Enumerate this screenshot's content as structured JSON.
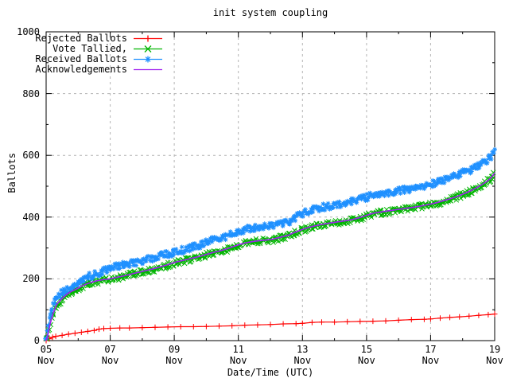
{
  "chart_data": {
    "type": "line",
    "title": "init system coupling",
    "xlabel": "Date/Time (UTC)",
    "ylabel": "Ballots",
    "ylim": [
      0,
      1000
    ],
    "xlim_days": [
      0,
      14
    ],
    "grid": true,
    "legend_position": "top-left",
    "y_ticks": [
      0,
      200,
      400,
      600,
      800,
      1000
    ],
    "y_minor_ticks": [
      100,
      300,
      500,
      700,
      900
    ],
    "x_tick_month": "Nov",
    "x_ticks": [
      {
        "day": 0,
        "label": "05"
      },
      {
        "day": 2,
        "label": "07"
      },
      {
        "day": 4,
        "label": "09"
      },
      {
        "day": 6,
        "label": "11"
      },
      {
        "day": 8,
        "label": "13"
      },
      {
        "day": 10,
        "label": "15"
      },
      {
        "day": 12,
        "label": "17"
      },
      {
        "day": 14,
        "label": "19"
      }
    ],
    "x_minor_days": [
      1,
      3,
      5,
      7,
      9,
      11,
      13
    ],
    "series": [
      {
        "name": "Rejected Ballots",
        "color": "#ff0000",
        "marker": "plus",
        "style": "linespoints",
        "points": [
          [
            0,
            0
          ],
          [
            0.1,
            6
          ],
          [
            0.2,
            11
          ],
          [
            0.3,
            14
          ],
          [
            0.5,
            17
          ],
          [
            0.7,
            21
          ],
          [
            0.9,
            24
          ],
          [
            1.1,
            27
          ],
          [
            1.3,
            30
          ],
          [
            1.5,
            33
          ],
          [
            1.65,
            37
          ],
          [
            1.8,
            39
          ],
          [
            2.0,
            40
          ],
          [
            2.3,
            41
          ],
          [
            2.6,
            41
          ],
          [
            3.0,
            42
          ],
          [
            3.4,
            43
          ],
          [
            3.8,
            44
          ],
          [
            4.2,
            45
          ],
          [
            4.6,
            45
          ],
          [
            5.0,
            46
          ],
          [
            5.4,
            47
          ],
          [
            5.8,
            48
          ],
          [
            6.2,
            50
          ],
          [
            6.6,
            51
          ],
          [
            7.0,
            52
          ],
          [
            7.4,
            54
          ],
          [
            7.8,
            55
          ],
          [
            8.0,
            56
          ],
          [
            8.3,
            59
          ],
          [
            8.6,
            60
          ],
          [
            9.0,
            60
          ],
          [
            9.4,
            61
          ],
          [
            9.8,
            62
          ],
          [
            10.2,
            63
          ],
          [
            10.6,
            64
          ],
          [
            11.0,
            66
          ],
          [
            11.4,
            68
          ],
          [
            11.8,
            69
          ],
          [
            12.0,
            70
          ],
          [
            12.3,
            73
          ],
          [
            12.6,
            75
          ],
          [
            12.9,
            77
          ],
          [
            13.2,
            79
          ],
          [
            13.5,
            82
          ],
          [
            13.8,
            84
          ],
          [
            14.0,
            86
          ]
        ]
      },
      {
        "name": "Vote Tallied,",
        "color": "#00b400",
        "marker": "cross",
        "style": "scatterline",
        "points": [
          [
            0,
            0
          ],
          [
            0.05,
            15
          ],
          [
            0.1,
            40
          ],
          [
            0.15,
            62
          ],
          [
            0.2,
            80
          ],
          [
            0.25,
            95
          ],
          [
            0.3,
            108
          ],
          [
            0.35,
            118
          ],
          [
            0.42,
            126
          ],
          [
            0.5,
            134
          ],
          [
            0.6,
            144
          ],
          [
            0.7,
            152
          ],
          [
            0.8,
            158
          ],
          [
            0.9,
            163
          ],
          [
            1.0,
            168
          ],
          [
            1.1,
            174
          ],
          [
            1.2,
            179
          ],
          [
            1.3,
            183
          ],
          [
            1.45,
            188
          ],
          [
            1.6,
            192
          ],
          [
            1.75,
            195
          ],
          [
            1.9,
            197
          ],
          [
            2.0,
            198
          ],
          [
            2.2,
            203
          ],
          [
            2.4,
            207
          ],
          [
            2.6,
            212
          ],
          [
            2.8,
            217
          ],
          [
            3.0,
            222
          ],
          [
            3.2,
            227
          ],
          [
            3.4,
            232
          ],
          [
            3.6,
            238
          ],
          [
            3.8,
            244
          ],
          [
            4.0,
            251
          ],
          [
            4.2,
            256
          ],
          [
            4.4,
            261
          ],
          [
            4.6,
            266
          ],
          [
            4.8,
            271
          ],
          [
            5.0,
            277
          ],
          [
            5.2,
            283
          ],
          [
            5.4,
            288
          ],
          [
            5.6,
            294
          ],
          [
            5.8,
            301
          ],
          [
            6.0,
            308
          ],
          [
            6.2,
            314
          ],
          [
            6.4,
            318
          ],
          [
            6.6,
            321
          ],
          [
            6.8,
            323
          ],
          [
            7.0,
            325
          ],
          [
            7.2,
            330
          ],
          [
            7.4,
            335
          ],
          [
            7.55,
            339
          ],
          [
            7.7,
            346
          ],
          [
            7.85,
            352
          ],
          [
            8.0,
            358
          ],
          [
            8.2,
            365
          ],
          [
            8.4,
            370
          ],
          [
            8.6,
            374
          ],
          [
            8.8,
            378
          ],
          [
            9.0,
            381
          ],
          [
            9.2,
            384
          ],
          [
            9.4,
            387
          ],
          [
            9.6,
            391
          ],
          [
            9.8,
            397
          ],
          [
            10.0,
            404
          ],
          [
            10.2,
            410
          ],
          [
            10.4,
            414
          ],
          [
            10.6,
            417
          ],
          [
            10.8,
            420
          ],
          [
            11.0,
            423
          ],
          [
            11.2,
            426
          ],
          [
            11.4,
            429
          ],
          [
            11.6,
            432
          ],
          [
            11.8,
            436
          ],
          [
            12.0,
            440
          ],
          [
            12.2,
            445
          ],
          [
            12.4,
            451
          ],
          [
            12.6,
            457
          ],
          [
            12.8,
            464
          ],
          [
            13.0,
            472
          ],
          [
            13.2,
            481
          ],
          [
            13.4,
            491
          ],
          [
            13.6,
            503
          ],
          [
            13.8,
            517
          ],
          [
            13.9,
            527
          ],
          [
            14.0,
            541
          ]
        ]
      },
      {
        "name": "Received Ballots",
        "color": "#1e90ff",
        "marker": "asterisk",
        "style": "scatterline",
        "points": [
          [
            0,
            0
          ],
          [
            0.05,
            25
          ],
          [
            0.1,
            60
          ],
          [
            0.15,
            85
          ],
          [
            0.2,
            105
          ],
          [
            0.25,
            120
          ],
          [
            0.3,
            132
          ],
          [
            0.35,
            141
          ],
          [
            0.42,
            149
          ],
          [
            0.5,
            156
          ],
          [
            0.6,
            165
          ],
          [
            0.7,
            172
          ],
          [
            0.8,
            178
          ],
          [
            0.9,
            184
          ],
          [
            1.0,
            190
          ],
          [
            1.1,
            196
          ],
          [
            1.2,
            201
          ],
          [
            1.3,
            206
          ],
          [
            1.45,
            212
          ],
          [
            1.6,
            218
          ],
          [
            1.75,
            224
          ],
          [
            1.9,
            230
          ],
          [
            2.0,
            234
          ],
          [
            2.2,
            240
          ],
          [
            2.4,
            245
          ],
          [
            2.6,
            249
          ],
          [
            2.8,
            253
          ],
          [
            3.0,
            258
          ],
          [
            3.2,
            264
          ],
          [
            3.4,
            270
          ],
          [
            3.6,
            275
          ],
          [
            3.8,
            280
          ],
          [
            4.0,
            286
          ],
          [
            4.2,
            291
          ],
          [
            4.4,
            297
          ],
          [
            4.6,
            303
          ],
          [
            4.8,
            310
          ],
          [
            5.0,
            318
          ],
          [
            5.2,
            325
          ],
          [
            5.4,
            331
          ],
          [
            5.6,
            337
          ],
          [
            5.8,
            345
          ],
          [
            6.0,
            354
          ],
          [
            6.2,
            360
          ],
          [
            6.4,
            364
          ],
          [
            6.6,
            367
          ],
          [
            6.8,
            369
          ],
          [
            7.0,
            371
          ],
          [
            7.2,
            375
          ],
          [
            7.4,
            380
          ],
          [
            7.55,
            385
          ],
          [
            7.7,
            394
          ],
          [
            7.85,
            403
          ],
          [
            8.0,
            411
          ],
          [
            8.2,
            419
          ],
          [
            8.4,
            426
          ],
          [
            8.6,
            431
          ],
          [
            8.8,
            435
          ],
          [
            9.0,
            439
          ],
          [
            9.2,
            443
          ],
          [
            9.4,
            447
          ],
          [
            9.6,
            451
          ],
          [
            9.8,
            457
          ],
          [
            10.0,
            465
          ],
          [
            10.2,
            470
          ],
          [
            10.4,
            474
          ],
          [
            10.6,
            478
          ],
          [
            10.8,
            482
          ],
          [
            11.0,
            486
          ],
          [
            11.2,
            489
          ],
          [
            11.4,
            492
          ],
          [
            11.6,
            496
          ],
          [
            11.8,
            501
          ],
          [
            12.0,
            507
          ],
          [
            12.2,
            513
          ],
          [
            12.4,
            519
          ],
          [
            12.6,
            525
          ],
          [
            12.8,
            533
          ],
          [
            13.0,
            542
          ],
          [
            13.2,
            551
          ],
          [
            13.4,
            561
          ],
          [
            13.6,
            573
          ],
          [
            13.8,
            589
          ],
          [
            13.9,
            601
          ],
          [
            14.0,
            621
          ]
        ]
      },
      {
        "name": "Acknowledgements",
        "color": "#a020f0",
        "marker": "none",
        "style": "line",
        "points": [
          [
            0,
            0
          ],
          [
            0.05,
            16
          ],
          [
            0.1,
            42
          ],
          [
            0.15,
            64
          ],
          [
            0.2,
            82
          ],
          [
            0.25,
            97
          ],
          [
            0.3,
            110
          ],
          [
            0.35,
            120
          ],
          [
            0.42,
            128
          ],
          [
            0.5,
            136
          ],
          [
            0.6,
            146
          ],
          [
            0.7,
            154
          ],
          [
            0.8,
            160
          ],
          [
            0.9,
            165
          ],
          [
            1.0,
            170
          ],
          [
            1.1,
            176
          ],
          [
            1.2,
            181
          ],
          [
            1.3,
            185
          ],
          [
            1.45,
            190
          ],
          [
            1.6,
            194
          ],
          [
            1.75,
            197
          ],
          [
            1.9,
            199
          ],
          [
            2.0,
            200
          ],
          [
            2.2,
            205
          ],
          [
            2.4,
            209
          ],
          [
            2.6,
            214
          ],
          [
            2.8,
            219
          ],
          [
            3.0,
            224
          ],
          [
            3.2,
            229
          ],
          [
            3.4,
            234
          ],
          [
            3.6,
            240
          ],
          [
            3.8,
            246
          ],
          [
            4.0,
            253
          ],
          [
            4.2,
            258
          ],
          [
            4.4,
            263
          ],
          [
            4.6,
            268
          ],
          [
            4.8,
            273
          ],
          [
            5.0,
            279
          ],
          [
            5.2,
            285
          ],
          [
            5.4,
            290
          ],
          [
            5.6,
            296
          ],
          [
            5.8,
            303
          ],
          [
            6.0,
            310
          ],
          [
            6.2,
            316
          ],
          [
            6.4,
            320
          ],
          [
            6.6,
            323
          ],
          [
            6.8,
            325
          ],
          [
            7.0,
            327
          ],
          [
            7.2,
            332
          ],
          [
            7.4,
            337
          ],
          [
            7.55,
            341
          ],
          [
            7.7,
            348
          ],
          [
            7.85,
            354
          ],
          [
            8.0,
            360
          ],
          [
            8.2,
            367
          ],
          [
            8.4,
            372
          ],
          [
            8.6,
            376
          ],
          [
            8.8,
            380
          ],
          [
            9.0,
            383
          ],
          [
            9.2,
            386
          ],
          [
            9.4,
            389
          ],
          [
            9.6,
            393
          ],
          [
            9.8,
            399
          ],
          [
            10.0,
            406
          ],
          [
            10.2,
            412
          ],
          [
            10.4,
            416
          ],
          [
            10.6,
            419
          ],
          [
            10.8,
            422
          ],
          [
            11.0,
            425
          ],
          [
            11.2,
            428
          ],
          [
            11.4,
            431
          ],
          [
            11.6,
            434
          ],
          [
            11.8,
            438
          ],
          [
            12.0,
            442
          ],
          [
            12.2,
            447
          ],
          [
            12.4,
            453
          ],
          [
            12.6,
            459
          ],
          [
            12.8,
            466
          ],
          [
            13.0,
            474
          ],
          [
            13.2,
            483
          ],
          [
            13.4,
            493
          ],
          [
            13.6,
            505
          ],
          [
            13.8,
            519
          ],
          [
            13.9,
            529
          ],
          [
            14.0,
            543
          ]
        ]
      }
    ]
  }
}
